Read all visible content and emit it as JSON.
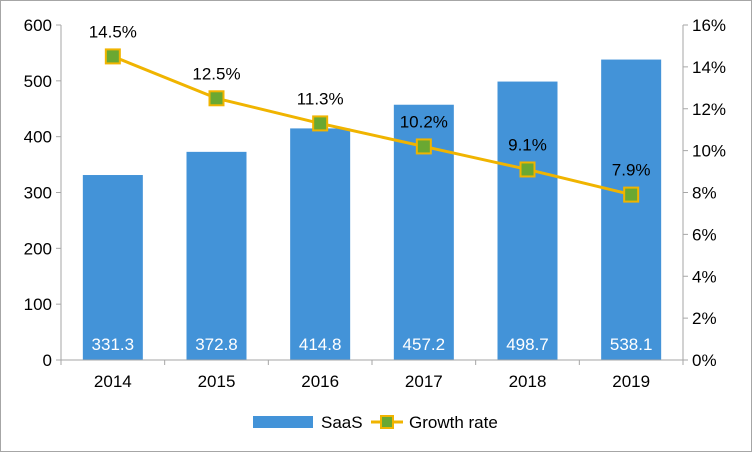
{
  "chart_data": {
    "type": "bar",
    "categories": [
      "2014",
      "2015",
      "2016",
      "2017",
      "2018",
      "2019"
    ],
    "series": [
      {
        "name": "SaaS",
        "type": "bar",
        "axis": "left",
        "values": [
          331.3,
          372.8,
          414.8,
          457.2,
          498.7,
          538.1
        ],
        "value_labels": [
          "331.3",
          "372.8",
          "414.8",
          "457.2",
          "498.7",
          "538.1"
        ],
        "color": "#4393d8"
      },
      {
        "name": "Growth rate",
        "type": "line",
        "axis": "right",
        "values": [
          14.5,
          12.5,
          11.3,
          10.2,
          9.1,
          7.9
        ],
        "value_labels": [
          "14.5%",
          "12.5%",
          "11.3%",
          "10.2%",
          "9.1%",
          "7.9%"
        ],
        "color": "#f0b400",
        "marker_color": "#6aa832"
      }
    ],
    "y_left": {
      "ylim": [
        0,
        600
      ],
      "ticks": [
        0,
        100,
        200,
        300,
        400,
        500,
        600
      ],
      "tick_labels": [
        "0",
        "100",
        "200",
        "300",
        "400",
        "500",
        "600"
      ]
    },
    "y_right": {
      "ylim": [
        0,
        16
      ],
      "ticks": [
        0,
        2,
        4,
        6,
        8,
        10,
        12,
        14,
        16
      ],
      "tick_labels": [
        "0%",
        "2%",
        "4%",
        "6%",
        "8%",
        "10%",
        "12%",
        "14%",
        "16%"
      ]
    },
    "grid": false,
    "legend_position": "bottom-center",
    "legend": [
      {
        "label": "SaaS",
        "kind": "bar",
        "color": "#4393d8"
      },
      {
        "label": "Growth rate",
        "kind": "line",
        "color": "#f0b400",
        "marker_color": "#6aa832"
      }
    ],
    "colors": {
      "axis": "#a6a6a6",
      "text": "#000000",
      "bar_label": "#ffffff"
    }
  }
}
